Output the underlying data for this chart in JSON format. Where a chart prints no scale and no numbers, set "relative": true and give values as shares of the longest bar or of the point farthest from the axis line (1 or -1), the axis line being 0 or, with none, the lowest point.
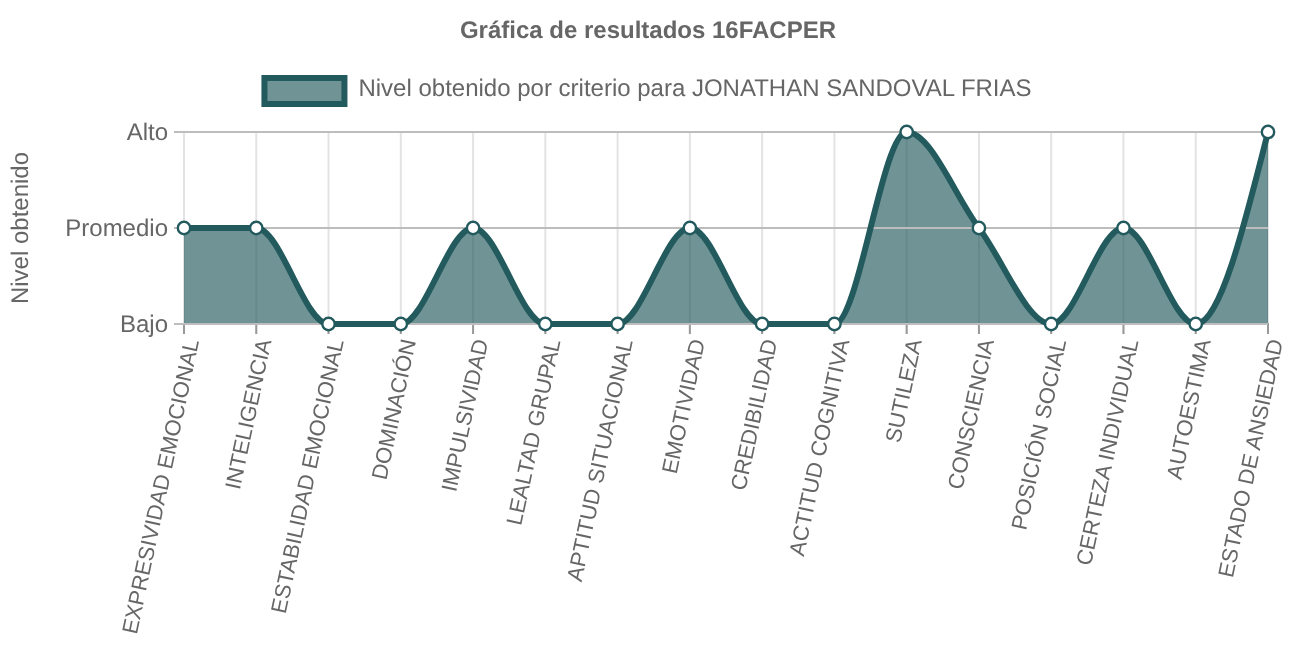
{
  "chart_data": {
    "type": "area",
    "title": "Gráfica de resultados 16FACPER",
    "ylabel": "Nivel obtenido",
    "relative": true,
    "categories": [
      "EXPRESIVIDAD EMOCIONAL",
      "INTELIGENCIA",
      "ESTABILIDAD EMOCIONAL",
      "DOMINACIÓN",
      "IMPULSIVIDAD",
      "LEALTAD GRUPAL",
      "APTITUD SITUACIONAL",
      "EMOTIVIDAD",
      "CREDIBILIDAD",
      "ACTITUD COGNITIVA",
      "SUTILEZA",
      "CONSCIENCIA",
      "POSICIÓN SOCIAL",
      "CERTEZA INDIVIDUAL",
      "AUTOESTIMA",
      "ESTADO DE ANSIEDAD"
    ],
    "series": [
      {
        "name": "Nivel obtenido por criterio para JONATHAN SANDOVAL FRIAS",
        "color": "#235a5e",
        "values": [
          0.5,
          0.5,
          0,
          0,
          0.5,
          0,
          0,
          0.5,
          0,
          0,
          1,
          0.5,
          0,
          0.5,
          0,
          1
        ]
      }
    ],
    "ref_lines": [
      {
        "axis": "y",
        "value": 0,
        "label": "Bajo",
        "color": "#bdbdbd"
      },
      {
        "axis": "y",
        "value": 0.5,
        "label": "Promedio",
        "color": "#bdbdbd"
      },
      {
        "axis": "y",
        "value": 1,
        "label": "Alto",
        "color": "#bdbdbd"
      }
    ],
    "grid": "x",
    "legend": "top",
    "marker": "circle"
  }
}
